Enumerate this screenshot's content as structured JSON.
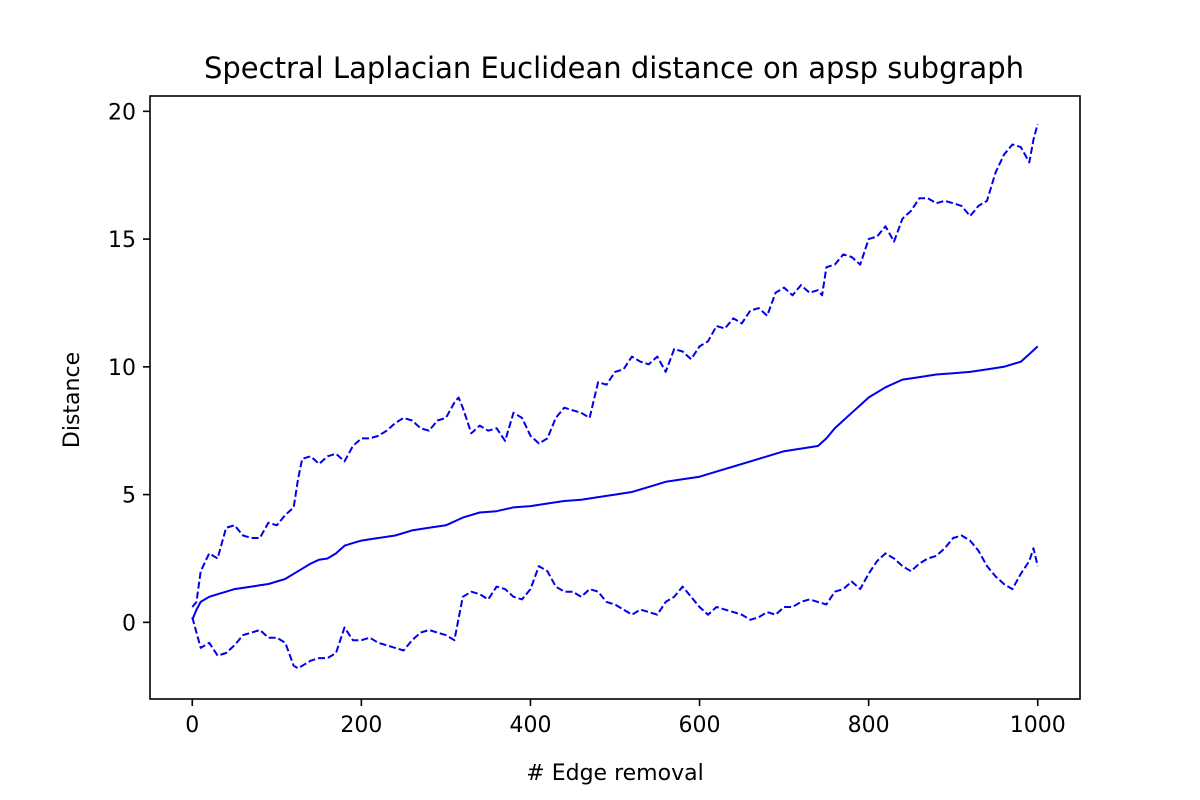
{
  "chart_data": {
    "type": "line",
    "title": "Spectral Laplacian Euclidean distance on apsp subgraph",
    "xlabel": "# Edge removal",
    "ylabel": "Distance",
    "xlim": [
      -50,
      1050
    ],
    "ylim": [
      -3,
      20.6
    ],
    "xticks": [
      0,
      200,
      400,
      600,
      800,
      1000
    ],
    "yticks": [
      0,
      5,
      10,
      15,
      20
    ],
    "grid": false,
    "legend": "none",
    "color": "#0000ee",
    "series": [
      {
        "style": "dashed",
        "x": [
          0,
          5,
          10,
          20,
          30,
          40,
          50,
          60,
          70,
          80,
          90,
          100,
          110,
          120,
          125,
          130,
          140,
          150,
          160,
          170,
          180,
          190,
          200,
          210,
          220,
          230,
          240,
          250,
          260,
          270,
          280,
          290,
          300,
          310,
          315,
          320,
          330,
          340,
          350,
          360,
          370,
          380,
          390,
          400,
          410,
          420,
          430,
          440,
          450,
          460,
          470,
          480,
          490,
          500,
          510,
          520,
          530,
          540,
          550,
          560,
          570,
          580,
          590,
          600,
          610,
          620,
          630,
          640,
          650,
          660,
          670,
          680,
          690,
          700,
          710,
          720,
          730,
          740,
          745,
          750,
          760,
          770,
          780,
          790,
          800,
          810,
          820,
          830,
          840,
          850,
          860,
          870,
          880,
          890,
          900,
          910,
          920,
          930,
          940,
          950,
          960,
          970,
          980,
          990,
          995,
          1000
        ],
        "y": [
          0.6,
          0.8,
          2.0,
          2.7,
          2.5,
          3.7,
          3.8,
          3.4,
          3.3,
          3.3,
          3.9,
          3.8,
          4.2,
          4.5,
          5.6,
          6.4,
          6.5,
          6.2,
          6.5,
          6.6,
          6.3,
          6.9,
          7.2,
          7.2,
          7.3,
          7.5,
          7.8,
          8.0,
          7.9,
          7.6,
          7.5,
          7.9,
          8.0,
          8.6,
          8.8,
          8.4,
          7.4,
          7.7,
          7.5,
          7.6,
          7.1,
          8.2,
          8.0,
          7.3,
          7.0,
          7.2,
          8.0,
          8.4,
          8.3,
          8.2,
          8.0,
          9.4,
          9.3,
          9.8,
          9.9,
          10.4,
          10.2,
          10.1,
          10.4,
          9.8,
          10.7,
          10.6,
          10.3,
          10.8,
          11.0,
          11.6,
          11.5,
          11.9,
          11.7,
          12.2,
          12.3,
          12.0,
          12.9,
          13.1,
          12.8,
          13.2,
          12.9,
          13.0,
          12.8,
          13.9,
          14.0,
          14.4,
          14.3,
          14.0,
          15.0,
          15.1,
          15.5,
          14.9,
          15.8,
          16.1,
          16.6,
          16.6,
          16.4,
          16.5,
          16.4,
          16.3,
          15.9,
          16.3,
          16.5,
          17.6,
          18.3,
          18.7,
          18.6,
          18.0,
          18.9,
          19.5
        ]
      },
      {
        "style": "solid",
        "x": [
          0,
          5,
          10,
          20,
          30,
          40,
          50,
          60,
          70,
          80,
          90,
          100,
          110,
          120,
          130,
          140,
          150,
          160,
          170,
          180,
          190,
          200,
          220,
          240,
          260,
          280,
          300,
          320,
          340,
          360,
          380,
          400,
          420,
          440,
          460,
          480,
          500,
          520,
          540,
          560,
          580,
          600,
          620,
          640,
          660,
          680,
          700,
          720,
          740,
          750,
          760,
          770,
          780,
          790,
          800,
          820,
          840,
          860,
          880,
          900,
          920,
          940,
          960,
          980,
          990,
          1000
        ],
        "y": [
          0.1,
          0.5,
          0.8,
          1.0,
          1.1,
          1.2,
          1.3,
          1.35,
          1.4,
          1.45,
          1.5,
          1.6,
          1.7,
          1.9,
          2.1,
          2.3,
          2.45,
          2.5,
          2.7,
          3.0,
          3.1,
          3.2,
          3.3,
          3.4,
          3.6,
          3.7,
          3.8,
          4.1,
          4.3,
          4.35,
          4.5,
          4.55,
          4.65,
          4.75,
          4.8,
          4.9,
          5.0,
          5.1,
          5.3,
          5.5,
          5.6,
          5.7,
          5.9,
          6.1,
          6.3,
          6.5,
          6.7,
          6.8,
          6.9,
          7.2,
          7.6,
          7.9,
          8.2,
          8.5,
          8.8,
          9.2,
          9.5,
          9.6,
          9.7,
          9.75,
          9.8,
          9.9,
          10.0,
          10.2,
          10.5,
          10.8
        ]
      },
      {
        "style": "dashed",
        "x": [
          0,
          5,
          10,
          20,
          30,
          40,
          50,
          60,
          70,
          80,
          90,
          100,
          110,
          120,
          125,
          130,
          140,
          150,
          160,
          170,
          180,
          190,
          200,
          210,
          220,
          230,
          240,
          250,
          260,
          270,
          280,
          290,
          300,
          310,
          320,
          330,
          340,
          350,
          360,
          370,
          380,
          390,
          400,
          410,
          420,
          430,
          440,
          450,
          460,
          470,
          480,
          490,
          500,
          510,
          520,
          530,
          540,
          550,
          560,
          570,
          580,
          590,
          600,
          610,
          620,
          630,
          640,
          650,
          660,
          670,
          680,
          690,
          700,
          710,
          720,
          730,
          740,
          750,
          760,
          770,
          780,
          790,
          800,
          810,
          820,
          830,
          840,
          850,
          860,
          870,
          880,
          890,
          900,
          910,
          920,
          930,
          940,
          950,
          960,
          970,
          980,
          990,
          995,
          1000
        ],
        "y": [
          0.2,
          -0.4,
          -1.0,
          -0.8,
          -1.3,
          -1.2,
          -0.9,
          -0.5,
          -0.4,
          -0.3,
          -0.6,
          -0.6,
          -0.8,
          -1.7,
          -1.8,
          -1.7,
          -1.5,
          -1.4,
          -1.4,
          -1.2,
          -0.2,
          -0.7,
          -0.7,
          -0.6,
          -0.8,
          -0.9,
          -1.0,
          -1.1,
          -0.7,
          -0.4,
          -0.3,
          -0.4,
          -0.5,
          -0.7,
          1.0,
          1.2,
          1.1,
          0.9,
          1.4,
          1.3,
          1.0,
          0.9,
          1.3,
          2.2,
          2.0,
          1.4,
          1.2,
          1.2,
          1.0,
          1.3,
          1.2,
          0.8,
          0.7,
          0.5,
          0.3,
          0.5,
          0.4,
          0.3,
          0.8,
          1.0,
          1.4,
          1.0,
          0.6,
          0.3,
          0.6,
          0.5,
          0.4,
          0.3,
          0.1,
          0.2,
          0.4,
          0.3,
          0.6,
          0.6,
          0.8,
          0.9,
          0.8,
          0.7,
          1.2,
          1.3,
          1.6,
          1.3,
          1.9,
          2.4,
          2.7,
          2.5,
          2.2,
          2.0,
          2.3,
          2.5,
          2.6,
          2.9,
          3.3,
          3.4,
          3.2,
          2.8,
          2.2,
          1.8,
          1.5,
          1.3,
          1.9,
          2.4,
          2.9,
          2.2
        ]
      }
    ]
  }
}
